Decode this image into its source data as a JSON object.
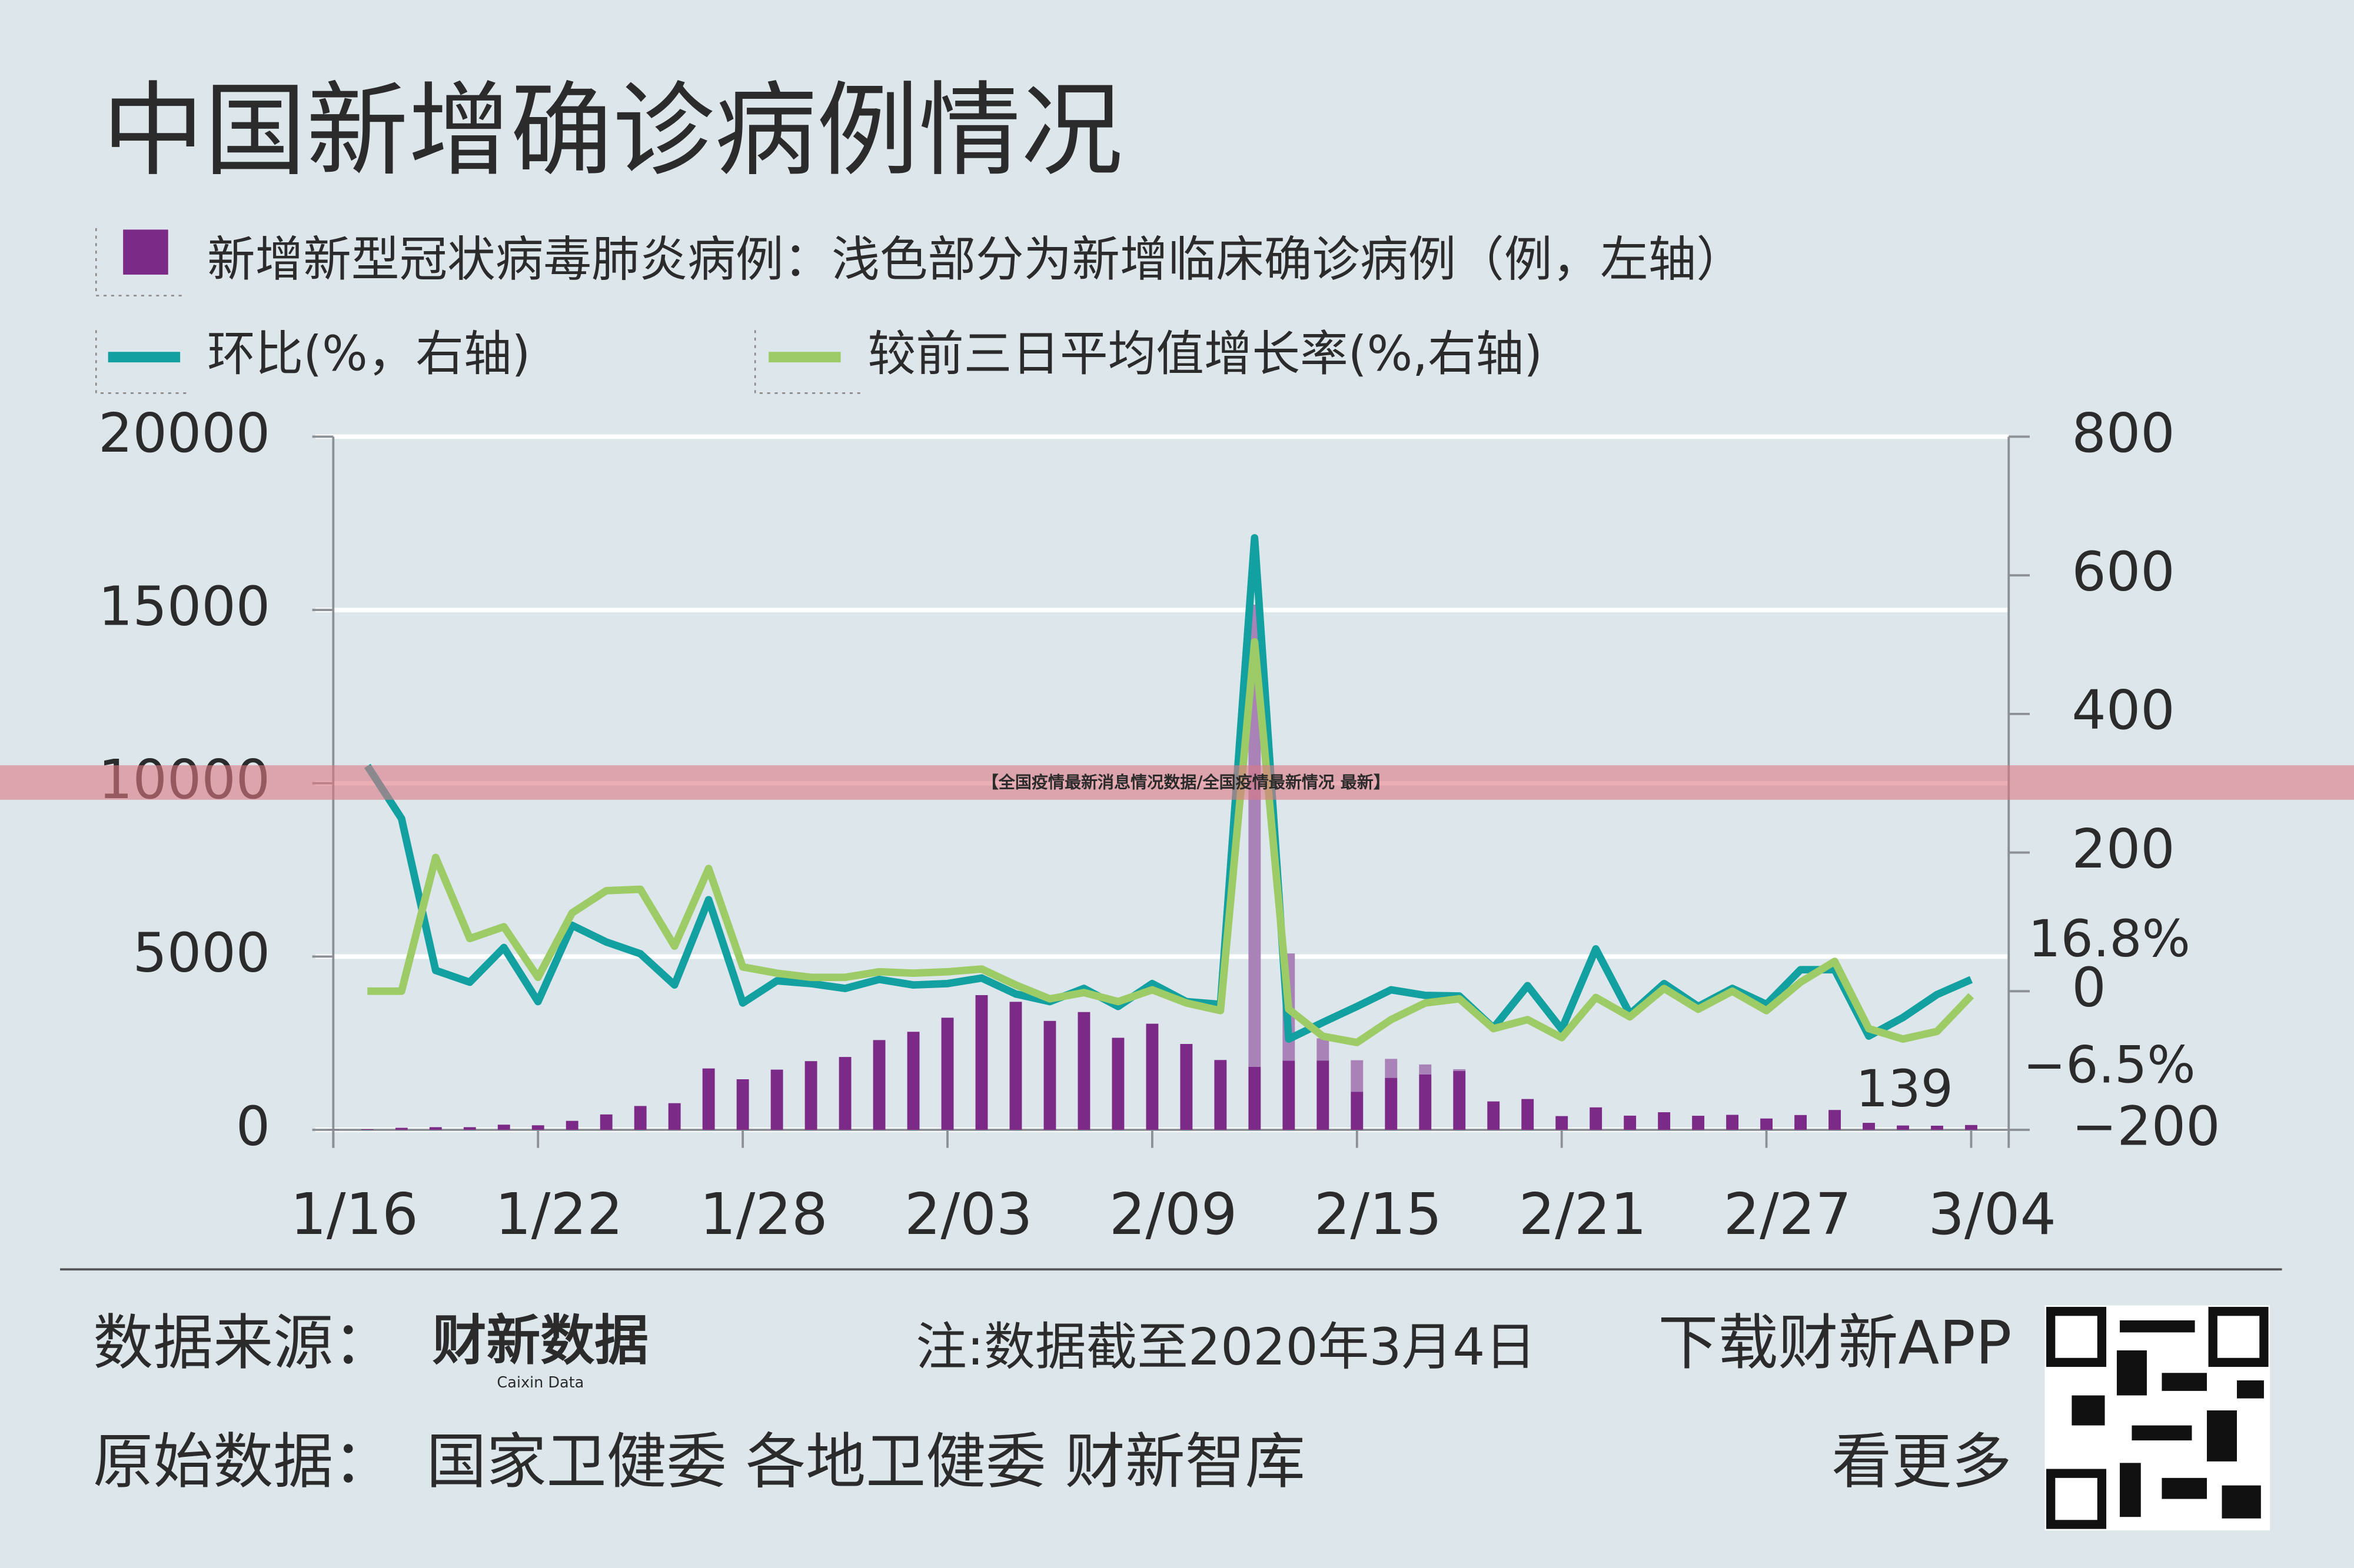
{
  "chart_data": {
    "type": "bar_line",
    "title": "中国新增确诊病例情况",
    "categories": [
      "1/16",
      null,
      null,
      null,
      null,
      null,
      "1/22",
      null,
      null,
      null,
      null,
      null,
      "1/28",
      null,
      null,
      null,
      null,
      null,
      "2/03",
      null,
      null,
      null,
      null,
      null,
      "2/09",
      null,
      null,
      null,
      null,
      null,
      "2/15",
      null,
      null,
      null,
      null,
      null,
      "2/21",
      null,
      null,
      null,
      null,
      null,
      "2/27",
      null,
      null,
      null,
      null,
      null,
      "3/04"
    ],
    "series": [
      {
        "name": "新增新型冠状病毒肺炎病例：浅色部分为新增临床确诊病例（例，左轴）",
        "type": "bar",
        "color": "#7b2a87",
        "light_color": "#a982b8",
        "values": [
          4,
          17,
          59,
          77,
          77,
          149,
          131,
          259,
          444,
          688,
          769,
          1771,
          1459,
          1737,
          1982,
          2102,
          2590,
          2829,
          3235,
          3887,
          3694,
          3143,
          3399,
          2656,
          3062,
          2478,
          2015,
          1820,
          1995,
          2000,
          1100,
          1500,
          1600,
          1700,
          820,
          889,
          397,
          648,
          409,
          508,
          406,
          433,
          327,
          427,
          573,
          202,
          125,
          119,
          139
        ],
        "clinical_values": [
          null,
          null,
          null,
          null,
          null,
          null,
          null,
          null,
          null,
          null,
          null,
          null,
          null,
          null,
          null,
          null,
          null,
          null,
          null,
          null,
          null,
          null,
          null,
          null,
          null,
          null,
          null,
          13332,
          3095,
          641,
          909,
          548,
          286,
          49,
          null,
          null,
          null,
          null,
          null,
          null,
          null,
          null,
          null,
          null,
          null,
          null,
          null,
          null,
          null
        ],
        "value_labels": [
          null,
          null,
          null,
          null,
          null,
          null,
          null,
          null,
          null,
          null,
          null,
          null,
          null,
          null,
          null,
          null,
          null,
          null,
          null,
          null,
          null,
          null,
          null,
          null,
          null,
          null,
          null,
          null,
          null,
          null,
          null,
          null,
          null,
          null,
          null,
          null,
          null,
          null,
          null,
          null,
          null,
          null,
          null,
          null,
          null,
          null,
          null,
          null,
          "139"
        ]
      },
      {
        "name": "环比(%，右轴)",
        "type": "line",
        "axis": "y2",
        "color": "#12a0a0",
        "values": [
          null,
          325,
          249,
          30,
          13,
          63,
          -15,
          95,
          71,
          54,
          9,
          132,
          -17,
          15,
          11,
          4,
          17,
          9,
          11,
          19,
          -4,
          -15,
          4,
          -22,
          11,
          -15,
          -19,
          654,
          -69,
          -45,
          -22,
          2,
          -6,
          -7,
          -53,
          8,
          -55,
          61,
          -33,
          11,
          -22,
          4,
          -19,
          31,
          31,
          -64.7,
          -38,
          -4.8,
          16.8
        ],
        "value_labels": [
          null,
          null,
          null,
          null,
          null,
          null,
          null,
          null,
          null,
          null,
          null,
          null,
          null,
          null,
          null,
          null,
          null,
          null,
          null,
          null,
          null,
          null,
          null,
          null,
          null,
          null,
          null,
          null,
          null,
          null,
          null,
          null,
          null,
          null,
          null,
          null,
          null,
          null,
          null,
          null,
          null,
          null,
          null,
          null,
          null,
          null,
          null,
          null,
          "16.8%"
        ]
      },
      {
        "name": "较前三日平均值增长率(%,右轴)",
        "type": "line",
        "axis": "y2",
        "color": "#9dcb66",
        "values": [
          null,
          0,
          0,
          193,
          76,
          93,
          20,
          113,
          145,
          147,
          65,
          177,
          35,
          26,
          20,
          20,
          28,
          26,
          28,
          32,
          9,
          -11,
          -2,
          -15,
          2,
          -17,
          -28,
          504,
          -26,
          -65,
          -74,
          -41,
          -17,
          -11,
          -54,
          -41,
          -67,
          -9,
          -37,
          4,
          -26,
          0,
          -28,
          13,
          43,
          -54,
          -69,
          -58,
          -6.5
        ],
        "value_labels": [
          null,
          null,
          null,
          null,
          null,
          null,
          null,
          null,
          null,
          null,
          null,
          null,
          null,
          null,
          null,
          null,
          null,
          null,
          null,
          null,
          null,
          null,
          null,
          null,
          null,
          null,
          null,
          null,
          null,
          null,
          null,
          null,
          null,
          null,
          null,
          null,
          null,
          null,
          null,
          null,
          null,
          null,
          null,
          null,
          null,
          null,
          null,
          null,
          "−6.5%"
        ]
      }
    ],
    "ylim": [
      0,
      20000
    ],
    "yticks": [
      0,
      5000,
      10000,
      15000,
      20000
    ],
    "y2lim": [
      -200,
      800
    ],
    "y2ticks": [
      {
        "value": -200,
        "label": "−200"
      },
      0,
      200,
      400,
      600,
      800
    ],
    "grid": true
  },
  "banner": "【全国疫情最新消息情况数据/全国疫情最新情况 最新】",
  "footer": {
    "source_label": "数据来源：",
    "logo": "财新数据",
    "logo_sub": "Caixin Data",
    "note": "注:数据截至2020年3月4日",
    "download": "下载财新APP",
    "raw_label": "原始数据：",
    "raw_sources": "国家卫健委 各地卫健委 财新智库",
    "more": "看更多"
  }
}
